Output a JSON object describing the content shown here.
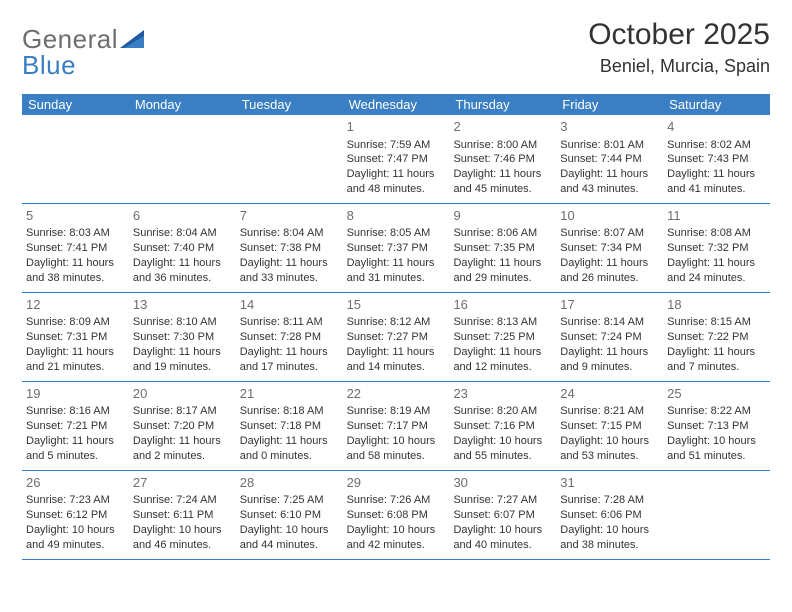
{
  "logo": {
    "text_general": "General",
    "text_blue": "Blue"
  },
  "title": "October 2025",
  "location": "Beniel, Murcia, Spain",
  "colors": {
    "header_bg": "#3a7fc3",
    "header_text": "#ffffff",
    "body_text": "#333333",
    "day_number": "#6e6e6e",
    "border": "#3a7fc3",
    "logo_gray": "#6e6e6e",
    "logo_blue": "#3a7fc3",
    "page_bg": "#ffffff"
  },
  "typography": {
    "title_fontsize": 30,
    "location_fontsize": 18,
    "weekday_fontsize": 13,
    "daynum_fontsize": 13,
    "body_fontsize": 11,
    "logo_fontsize": 26
  },
  "weekdays": [
    "Sunday",
    "Monday",
    "Tuesday",
    "Wednesday",
    "Thursday",
    "Friday",
    "Saturday"
  ],
  "weeks": [
    [
      {
        "n": "",
        "l1": "",
        "l2": "",
        "l3": "",
        "l4": ""
      },
      {
        "n": "",
        "l1": "",
        "l2": "",
        "l3": "",
        "l4": ""
      },
      {
        "n": "",
        "l1": "",
        "l2": "",
        "l3": "",
        "l4": ""
      },
      {
        "n": "1",
        "l1": "Sunrise: 7:59 AM",
        "l2": "Sunset: 7:47 PM",
        "l3": "Daylight: 11 hours",
        "l4": "and 48 minutes."
      },
      {
        "n": "2",
        "l1": "Sunrise: 8:00 AM",
        "l2": "Sunset: 7:46 PM",
        "l3": "Daylight: 11 hours",
        "l4": "and 45 minutes."
      },
      {
        "n": "3",
        "l1": "Sunrise: 8:01 AM",
        "l2": "Sunset: 7:44 PM",
        "l3": "Daylight: 11 hours",
        "l4": "and 43 minutes."
      },
      {
        "n": "4",
        "l1": "Sunrise: 8:02 AM",
        "l2": "Sunset: 7:43 PM",
        "l3": "Daylight: 11 hours",
        "l4": "and 41 minutes."
      }
    ],
    [
      {
        "n": "5",
        "l1": "Sunrise: 8:03 AM",
        "l2": "Sunset: 7:41 PM",
        "l3": "Daylight: 11 hours",
        "l4": "and 38 minutes."
      },
      {
        "n": "6",
        "l1": "Sunrise: 8:04 AM",
        "l2": "Sunset: 7:40 PM",
        "l3": "Daylight: 11 hours",
        "l4": "and 36 minutes."
      },
      {
        "n": "7",
        "l1": "Sunrise: 8:04 AM",
        "l2": "Sunset: 7:38 PM",
        "l3": "Daylight: 11 hours",
        "l4": "and 33 minutes."
      },
      {
        "n": "8",
        "l1": "Sunrise: 8:05 AM",
        "l2": "Sunset: 7:37 PM",
        "l3": "Daylight: 11 hours",
        "l4": "and 31 minutes."
      },
      {
        "n": "9",
        "l1": "Sunrise: 8:06 AM",
        "l2": "Sunset: 7:35 PM",
        "l3": "Daylight: 11 hours",
        "l4": "and 29 minutes."
      },
      {
        "n": "10",
        "l1": "Sunrise: 8:07 AM",
        "l2": "Sunset: 7:34 PM",
        "l3": "Daylight: 11 hours",
        "l4": "and 26 minutes."
      },
      {
        "n": "11",
        "l1": "Sunrise: 8:08 AM",
        "l2": "Sunset: 7:32 PM",
        "l3": "Daylight: 11 hours",
        "l4": "and 24 minutes."
      }
    ],
    [
      {
        "n": "12",
        "l1": "Sunrise: 8:09 AM",
        "l2": "Sunset: 7:31 PM",
        "l3": "Daylight: 11 hours",
        "l4": "and 21 minutes."
      },
      {
        "n": "13",
        "l1": "Sunrise: 8:10 AM",
        "l2": "Sunset: 7:30 PM",
        "l3": "Daylight: 11 hours",
        "l4": "and 19 minutes."
      },
      {
        "n": "14",
        "l1": "Sunrise: 8:11 AM",
        "l2": "Sunset: 7:28 PM",
        "l3": "Daylight: 11 hours",
        "l4": "and 17 minutes."
      },
      {
        "n": "15",
        "l1": "Sunrise: 8:12 AM",
        "l2": "Sunset: 7:27 PM",
        "l3": "Daylight: 11 hours",
        "l4": "and 14 minutes."
      },
      {
        "n": "16",
        "l1": "Sunrise: 8:13 AM",
        "l2": "Sunset: 7:25 PM",
        "l3": "Daylight: 11 hours",
        "l4": "and 12 minutes."
      },
      {
        "n": "17",
        "l1": "Sunrise: 8:14 AM",
        "l2": "Sunset: 7:24 PM",
        "l3": "Daylight: 11 hours",
        "l4": "and 9 minutes."
      },
      {
        "n": "18",
        "l1": "Sunrise: 8:15 AM",
        "l2": "Sunset: 7:22 PM",
        "l3": "Daylight: 11 hours",
        "l4": "and 7 minutes."
      }
    ],
    [
      {
        "n": "19",
        "l1": "Sunrise: 8:16 AM",
        "l2": "Sunset: 7:21 PM",
        "l3": "Daylight: 11 hours",
        "l4": "and 5 minutes."
      },
      {
        "n": "20",
        "l1": "Sunrise: 8:17 AM",
        "l2": "Sunset: 7:20 PM",
        "l3": "Daylight: 11 hours",
        "l4": "and 2 minutes."
      },
      {
        "n": "21",
        "l1": "Sunrise: 8:18 AM",
        "l2": "Sunset: 7:18 PM",
        "l3": "Daylight: 11 hours",
        "l4": "and 0 minutes."
      },
      {
        "n": "22",
        "l1": "Sunrise: 8:19 AM",
        "l2": "Sunset: 7:17 PM",
        "l3": "Daylight: 10 hours",
        "l4": "and 58 minutes."
      },
      {
        "n": "23",
        "l1": "Sunrise: 8:20 AM",
        "l2": "Sunset: 7:16 PM",
        "l3": "Daylight: 10 hours",
        "l4": "and 55 minutes."
      },
      {
        "n": "24",
        "l1": "Sunrise: 8:21 AM",
        "l2": "Sunset: 7:15 PM",
        "l3": "Daylight: 10 hours",
        "l4": "and 53 minutes."
      },
      {
        "n": "25",
        "l1": "Sunrise: 8:22 AM",
        "l2": "Sunset: 7:13 PM",
        "l3": "Daylight: 10 hours",
        "l4": "and 51 minutes."
      }
    ],
    [
      {
        "n": "26",
        "l1": "Sunrise: 7:23 AM",
        "l2": "Sunset: 6:12 PM",
        "l3": "Daylight: 10 hours",
        "l4": "and 49 minutes."
      },
      {
        "n": "27",
        "l1": "Sunrise: 7:24 AM",
        "l2": "Sunset: 6:11 PM",
        "l3": "Daylight: 10 hours",
        "l4": "and 46 minutes."
      },
      {
        "n": "28",
        "l1": "Sunrise: 7:25 AM",
        "l2": "Sunset: 6:10 PM",
        "l3": "Daylight: 10 hours",
        "l4": "and 44 minutes."
      },
      {
        "n": "29",
        "l1": "Sunrise: 7:26 AM",
        "l2": "Sunset: 6:08 PM",
        "l3": "Daylight: 10 hours",
        "l4": "and 42 minutes."
      },
      {
        "n": "30",
        "l1": "Sunrise: 7:27 AM",
        "l2": "Sunset: 6:07 PM",
        "l3": "Daylight: 10 hours",
        "l4": "and 40 minutes."
      },
      {
        "n": "31",
        "l1": "Sunrise: 7:28 AM",
        "l2": "Sunset: 6:06 PM",
        "l3": "Daylight: 10 hours",
        "l4": "and 38 minutes."
      },
      {
        "n": "",
        "l1": "",
        "l2": "",
        "l3": "",
        "l4": ""
      }
    ]
  ]
}
